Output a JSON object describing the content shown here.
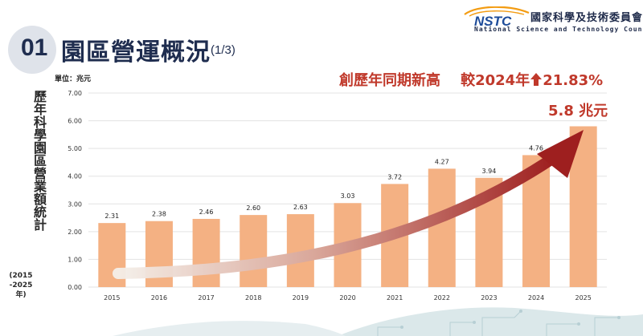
{
  "header": {
    "section_number": "01",
    "title": "園區營運概況",
    "subtitle": "(1/3)"
  },
  "logo": {
    "mark": "NSTC",
    "name_cn": "國家科學及技術委員會",
    "name_en": "National Science and Technology Council"
  },
  "side_label": {
    "text": "歷年科學園區營業額統計",
    "range": "(2015 -2025 年)"
  },
  "unit_label": "單位：兆元",
  "headline": {
    "part1": "創歷年同期新高",
    "part2": "較2024年",
    "arrow_icon": "up-arrow-icon",
    "part3": "21.83%"
  },
  "callout": "5.8 兆元",
  "colors": {
    "bar": "#f4b183",
    "accent_red": "#c0392b",
    "title_navy": "#1f2d4f"
  },
  "chart_data": {
    "type": "bar",
    "categories": [
      "2015",
      "2016",
      "2017",
      "2018",
      "2019",
      "2020",
      "2021",
      "2022",
      "2023",
      "2024",
      "2025"
    ],
    "values": [
      2.31,
      2.38,
      2.46,
      2.6,
      2.63,
      3.03,
      3.72,
      4.27,
      3.94,
      4.76,
      5.8
    ],
    "data_labels": [
      "2.31",
      "2.38",
      "2.46",
      "2.60",
      "2.63",
      "3.03",
      "3.72",
      "4.27",
      "3.94",
      "4.76",
      ""
    ],
    "yticks": [
      "0.00",
      "1.00",
      "2.00",
      "3.00",
      "4.00",
      "5.00",
      "6.00",
      "7.00"
    ],
    "ylim": [
      0,
      7
    ],
    "grid": true,
    "trend_arrow": true
  }
}
